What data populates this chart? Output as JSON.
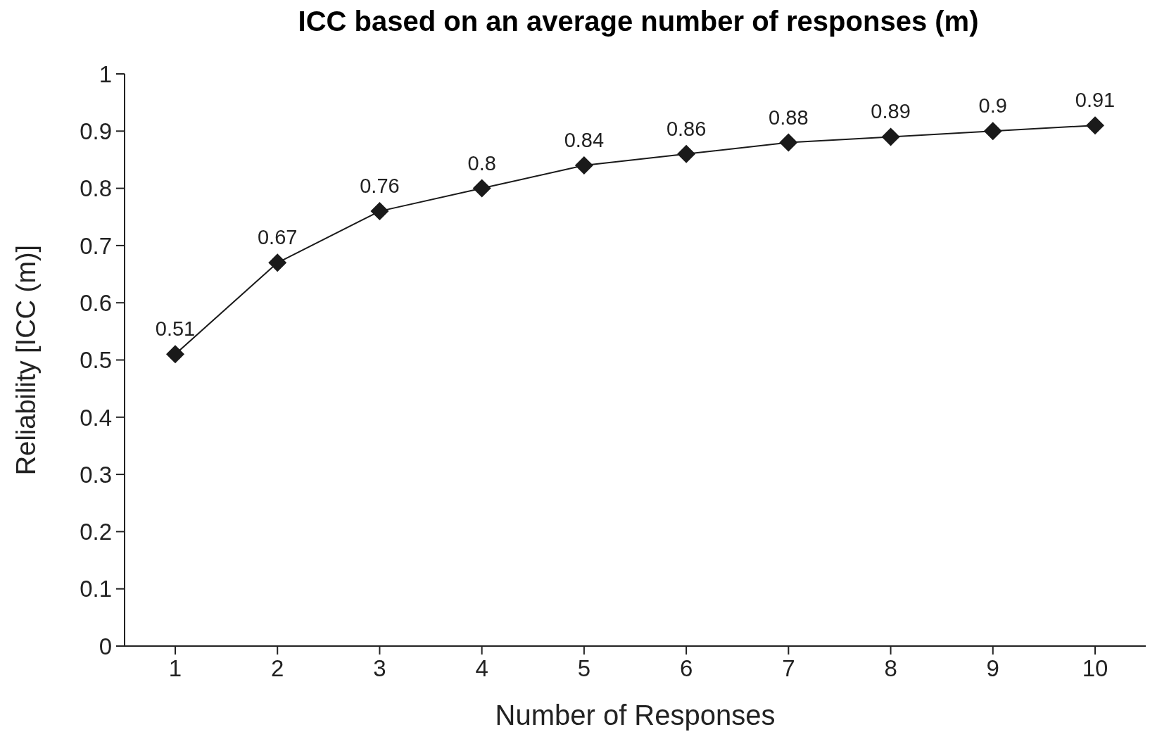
{
  "chart_data": {
    "type": "line",
    "title": "ICC based on an average number of responses (m)",
    "xlabel": "Number of Responses",
    "ylabel": "Reliability [ICC (m)]",
    "categories": [
      "1",
      "2",
      "3",
      "4",
      "5",
      "6",
      "7",
      "8",
      "9",
      "10"
    ],
    "series": [
      {
        "color": "#1a1a1a",
        "values": [
          0.51,
          0.67,
          0.76,
          0.8,
          0.84,
          0.86,
          0.88,
          0.89,
          0.9,
          0.91
        ]
      }
    ],
    "ylim": [
      0,
      1
    ],
    "yticks": [
      0,
      0.1,
      0.2,
      0.3,
      0.4,
      0.5,
      0.6,
      0.7,
      0.8,
      0.9,
      1
    ],
    "data_labels": true,
    "marker": "diamond",
    "line_style": "solid",
    "grid": false
  }
}
